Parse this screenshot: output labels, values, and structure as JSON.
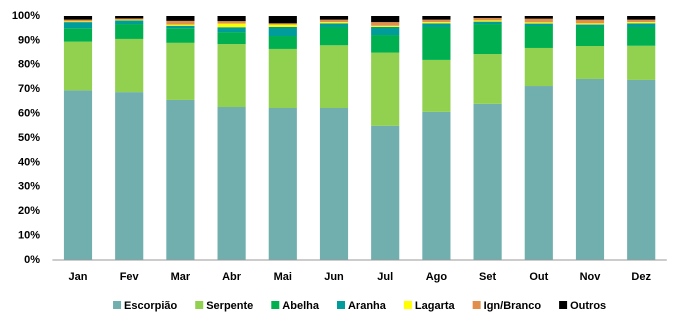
{
  "chart_data": {
    "type": "stacked_bar",
    "categories": [
      "Jan",
      "Fev",
      "Mar",
      "Abr",
      "Mai",
      "Jun",
      "Jul",
      "Ago",
      "Set",
      "Out",
      "Nov",
      "Dez"
    ],
    "series": [
      {
        "name": "Escorpião",
        "color": "#71afaf",
        "values": [
          69.5,
          68.8,
          65.6,
          62.7,
          62.3,
          62.3,
          55,
          60.7,
          64,
          71.3,
          74.2,
          73.8
        ]
      },
      {
        "name": "Serpente",
        "color": "#92d050",
        "values": [
          20,
          21.8,
          23.4,
          25.8,
          24.2,
          25.7,
          30,
          21.3,
          20.4,
          15.6,
          13.5,
          14
        ]
      },
      {
        "name": "Abelha",
        "color": "#00b050",
        "values": [
          5.5,
          6.1,
          6,
          4.9,
          5.3,
          7.5,
          7.2,
          13.5,
          12.3,
          9,
          7.8,
          7.7
        ]
      },
      {
        "name": "Aranha",
        "color": "#009b9b",
        "values": [
          2.5,
          1.5,
          1,
          2,
          3.7,
          1.5,
          3.3,
          1.5,
          1,
          1,
          1,
          1.5
        ]
      },
      {
        "name": "Lagarta",
        "color": "#ffff00",
        "values": [
          0.3,
          0.3,
          0.5,
          1.5,
          1,
          0.5,
          0.5,
          0.5,
          0.5,
          0.5,
          0.5,
          0.5
        ]
      },
      {
        "name": "Ign/Branco",
        "color": "#e0904c",
        "values": [
          0.7,
          0.5,
          1.5,
          1,
          0.5,
          1,
          1.5,
          1,
          1,
          1.5,
          1.5,
          1
        ]
      },
      {
        "name": "Outros",
        "color": "#000000",
        "values": [
          1.5,
          1,
          2,
          2.1,
          3,
          1.5,
          2.5,
          1.5,
          0.8,
          1.1,
          1.5,
          1.5
        ]
      }
    ],
    "ylim": [
      0,
      100
    ],
    "yticks": [
      {
        "value": 0,
        "label": "0%"
      },
      {
        "value": 10,
        "label": "10%"
      },
      {
        "value": 20,
        "label": "20%"
      },
      {
        "value": 30,
        "label": "30%"
      },
      {
        "value": 40,
        "label": "40%"
      },
      {
        "value": 50,
        "label": "50%"
      },
      {
        "value": 60,
        "label": "60%"
      },
      {
        "value": 70,
        "label": "70%"
      },
      {
        "value": 80,
        "label": "80%"
      },
      {
        "value": 90,
        "label": "90%"
      },
      {
        "value": 100,
        "label": "100%"
      }
    ],
    "grid": false,
    "legend": "bottom"
  }
}
